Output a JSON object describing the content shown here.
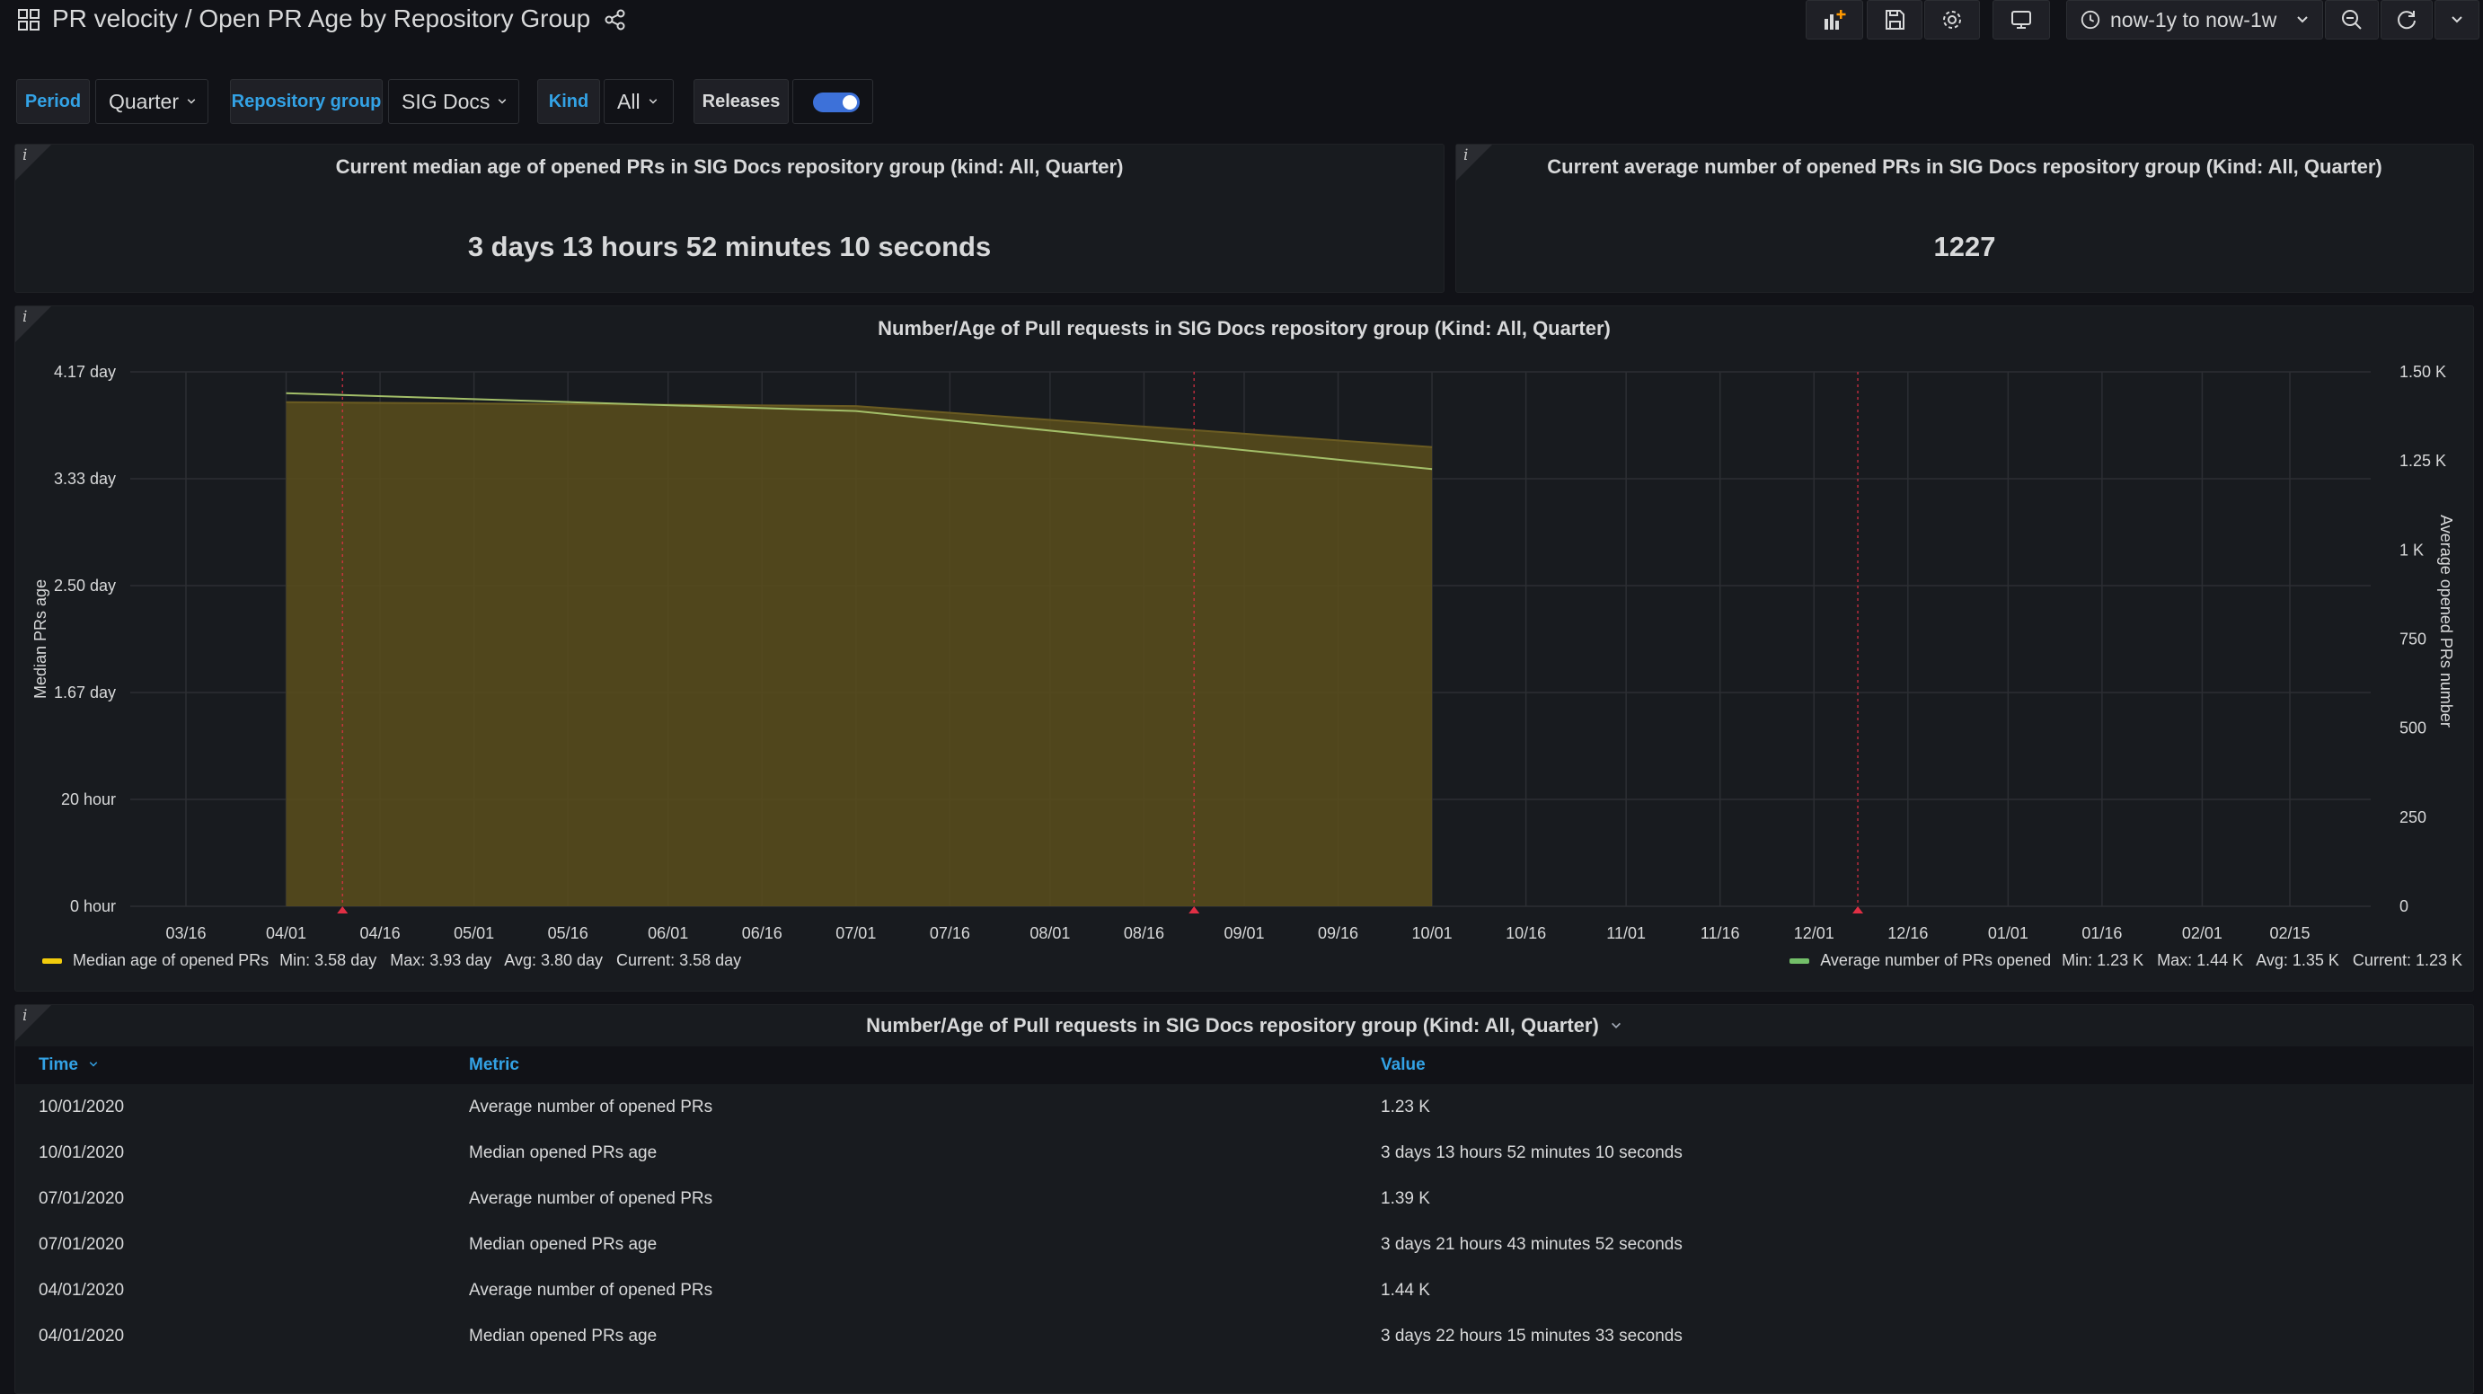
{
  "header": {
    "title": "PR velocity / Open PR Age by Repository Group",
    "time_range": "now-1y to now-1w"
  },
  "variables": [
    {
      "label": "Period",
      "value": "Quarter"
    },
    {
      "label": "Repository group",
      "value": "SIG Docs"
    },
    {
      "label": "Kind",
      "value": "All"
    },
    {
      "label": "Releases",
      "toggle": true
    }
  ],
  "stats": [
    {
      "title": "Current median age of opened PRs in SIG Docs repository group (kind: All, Quarter)",
      "value": "3 days 13 hours 52 minutes 10 seconds"
    },
    {
      "title": "Current average number of opened PRs in SIG Docs repository group (Kind: All, Quarter)",
      "value": "1227"
    }
  ],
  "chart": {
    "title": "Number/Age of Pull requests in SIG Docs repository group (Kind: All, Quarter)",
    "legend": [
      {
        "name": "Median age of opened PRs",
        "color": "#f2cc0c",
        "stats": "Min: 3.58 day   Max: 3.93 day   Avg: 3.80 day   Current: 3.58 day"
      },
      {
        "name": "Average number of PRs opened",
        "color": "#73bf69",
        "stats": "Min: 1.23 K   Max: 1.44 K   Avg: 1.35 K   Current: 1.23 K"
      }
    ]
  },
  "chart_data": {
    "type": "area",
    "title": "Number/Age of Pull requests in SIG Docs repository group (Kind: All, Quarter)",
    "xlabel": "",
    "x_ticks": [
      "03/16",
      "04/01",
      "04/16",
      "05/01",
      "05/16",
      "06/01",
      "06/16",
      "07/01",
      "07/16",
      "08/01",
      "08/16",
      "09/01",
      "09/16",
      "10/01",
      "10/16",
      "11/01",
      "11/16",
      "12/01",
      "12/16",
      "01/01",
      "01/16",
      "02/01",
      "02/15"
    ],
    "y_left": {
      "label": "Median PRs age",
      "ticks": [
        "4.17 day",
        "3.33 day",
        "2.50 day",
        "1.67 day",
        "20 hour",
        "0 hour"
      ],
      "range_days": [
        0,
        4.1667
      ]
    },
    "y_right": {
      "label": "Average opened PRs number",
      "ticks": [
        "1.50 K",
        "1.25 K",
        "1 K",
        "750",
        "500",
        "250",
        "0"
      ],
      "range": [
        0,
        1500
      ]
    },
    "series": [
      {
        "name": "Median age of opened PRs",
        "axis": "left",
        "x": [
          "04/01",
          "07/01",
          "10/01"
        ],
        "values_days": [
          3.93,
          3.9,
          3.58
        ],
        "color": "#f2cc0c"
      },
      {
        "name": "Average number of PRs opened",
        "axis": "right",
        "x": [
          "04/01",
          "07/01",
          "10/01"
        ],
        "values": [
          1440,
          1390,
          1227
        ],
        "color": "#73bf69"
      }
    ],
    "annotations": [
      "03/25",
      "08/25",
      "12/08"
    ]
  },
  "table": {
    "title": "Number/Age of Pull requests in SIG Docs repository group (Kind: All, Quarter)",
    "columns": [
      "Time",
      "Metric",
      "Value"
    ],
    "rows": [
      [
        "10/01/2020",
        "Average number of opened PRs",
        "1.23 K"
      ],
      [
        "10/01/2020",
        "Median opened PRs age",
        "3 days 13 hours 52 minutes 10 seconds"
      ],
      [
        "07/01/2020",
        "Average number of opened PRs",
        "1.39 K"
      ],
      [
        "07/01/2020",
        "Median opened PRs age",
        "3 days 21 hours 43 minutes 52 seconds"
      ],
      [
        "04/01/2020",
        "Average number of opened PRs",
        "1.44 K"
      ],
      [
        "04/01/2020",
        "Median opened PRs age",
        "3 days 22 hours 15 minutes 33 seconds"
      ]
    ]
  },
  "icons": [
    "dashboard-grid-icon",
    "share-icon",
    "add-panel-icon",
    "save-icon",
    "settings-icon",
    "tv-mode-icon",
    "clock-icon",
    "zoom-out-icon",
    "refresh-icon",
    "chevron-down-icon"
  ]
}
